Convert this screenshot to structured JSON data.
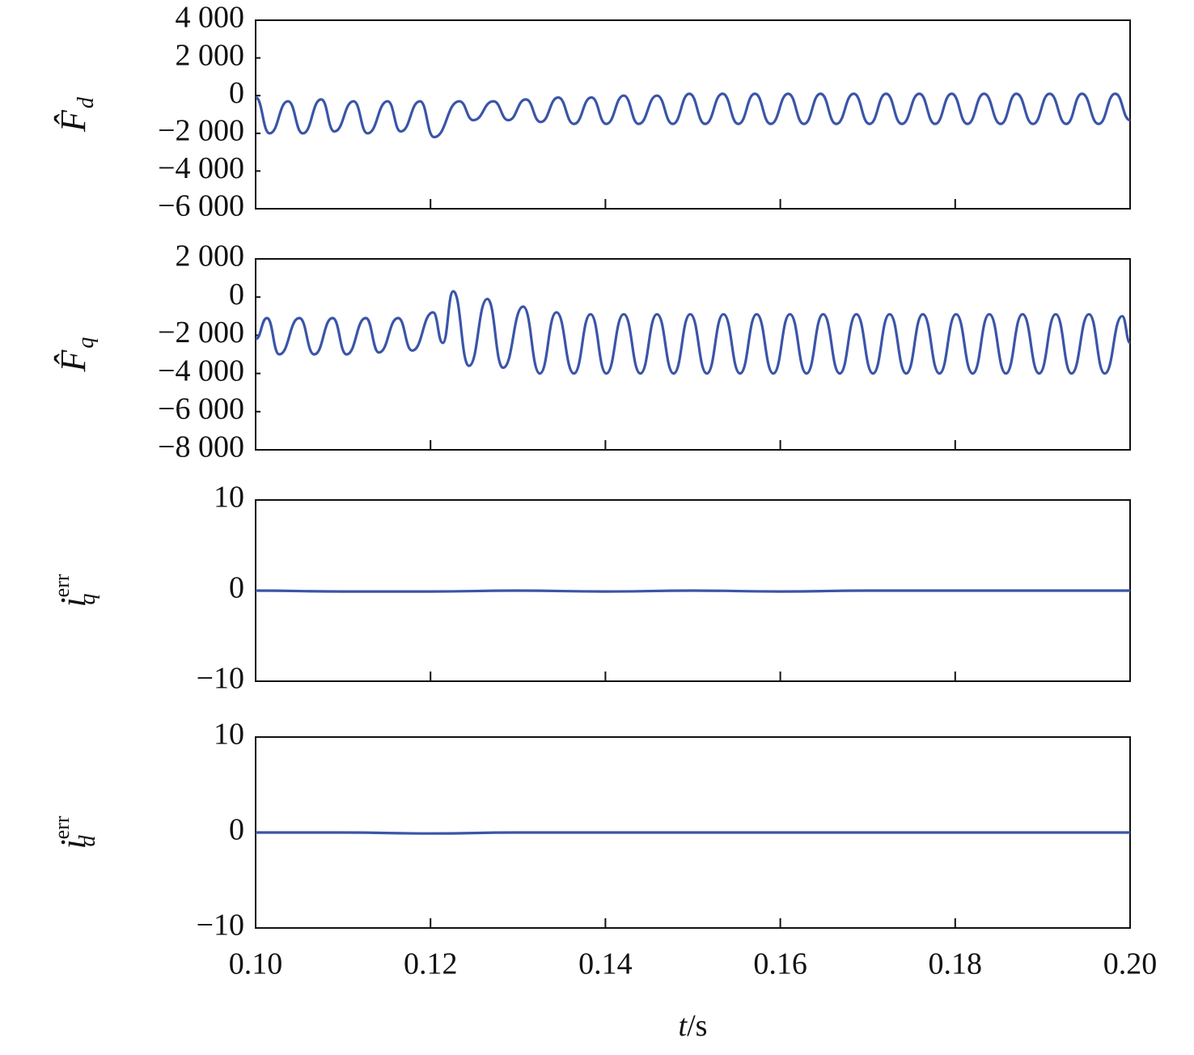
{
  "chart_data": [
    {
      "type": "line",
      "ylabel": "F̂",
      "ylabel_sub": "d",
      "x": [
        0.1,
        0.1016,
        0.1037,
        0.1054,
        0.1075,
        0.109,
        0.1112,
        0.1128,
        0.1151,
        0.1166,
        0.1188,
        0.1204,
        0.1233,
        0.1249,
        0.1272,
        0.1289,
        0.1309,
        0.1326,
        0.1346,
        0.1364,
        0.1384,
        0.1401,
        0.1421,
        0.1438,
        0.1459,
        0.1477,
        0.1496,
        0.1514,
        0.1534,
        0.1552,
        0.1571,
        0.1589,
        0.1609,
        0.1627,
        0.1646,
        0.1664,
        0.1684,
        0.1702,
        0.1721,
        0.1739,
        0.1759,
        0.1777,
        0.1796,
        0.1814,
        0.1833,
        0.1852,
        0.187,
        0.1889,
        0.1908,
        0.1927,
        0.1945,
        0.1964,
        0.1983,
        0.2
      ],
      "series": [
        {
          "color": "#3a55a8",
          "values": [
            -100,
            -2000,
            -300,
            -2000,
            -200,
            -1900,
            -300,
            -2000,
            -300,
            -1900,
            -300,
            -2200,
            -300,
            -1300,
            -300,
            -1300,
            -200,
            -1400,
            -100,
            -1500,
            -100,
            -1500,
            0,
            -1500,
            0,
            -1500,
            100,
            -1500,
            100,
            -1500,
            100,
            -1500,
            100,
            -1500,
            100,
            -1500,
            100,
            -1500,
            100,
            -1500,
            100,
            -1500,
            100,
            -1500,
            100,
            -1500,
            100,
            -1500,
            100,
            -1500,
            100,
            -1500,
            100,
            -1300
          ]
        }
      ],
      "xlim": [
        0.1,
        0.2
      ],
      "xticks": [
        0.1,
        0.12,
        0.14,
        0.16,
        0.18,
        0.2
      ],
      "ylim": [
        -6000,
        4000
      ],
      "yticks": [
        {
          "value": 4000,
          "label": "4 000"
        },
        {
          "value": 2000,
          "label": "2 000"
        },
        0,
        {
          "value": -2000,
          "label": "−2 000"
        },
        {
          "value": -4000,
          "label": "−4 000"
        },
        {
          "value": -6000,
          "label": "−6 000"
        }
      ]
    },
    {
      "type": "line",
      "ylabel": "F̂",
      "ylabel_sub": "q",
      "x": [
        0.1,
        0.1013,
        0.1027,
        0.105,
        0.1067,
        0.1088,
        0.1104,
        0.1126,
        0.1141,
        0.1163,
        0.1179,
        0.1203,
        0.1214,
        0.1226,
        0.1244,
        0.1265,
        0.1283,
        0.1306,
        0.1325,
        0.1344,
        0.1364,
        0.1383,
        0.1401,
        0.1421,
        0.144,
        0.1459,
        0.1478,
        0.1497,
        0.1516,
        0.1535,
        0.1554,
        0.1573,
        0.1592,
        0.1611,
        0.163,
        0.1649,
        0.1668,
        0.1687,
        0.1706,
        0.1725,
        0.1744,
        0.1763,
        0.1782,
        0.1801,
        0.182,
        0.1839,
        0.1858,
        0.1877,
        0.1896,
        0.1915,
        0.1933,
        0.1953,
        0.1971,
        0.1991,
        0.2
      ],
      "series": [
        {
          "color": "#3a55a8",
          "values": [
            -2200,
            -1100,
            -3000,
            -1100,
            -3000,
            -1100,
            -3000,
            -1100,
            -2900,
            -1100,
            -2800,
            -800,
            -2400,
            300,
            -3600,
            -100,
            -3700,
            -500,
            -4000,
            -800,
            -4000,
            -900,
            -4000,
            -900,
            -4000,
            -900,
            -4000,
            -900,
            -4000,
            -900,
            -4000,
            -900,
            -4000,
            -900,
            -4000,
            -900,
            -4000,
            -900,
            -4000,
            -900,
            -4000,
            -900,
            -4000,
            -900,
            -4000,
            -900,
            -4000,
            -900,
            -4000,
            -900,
            -4000,
            -900,
            -4000,
            -1000,
            -2400
          ]
        }
      ],
      "xlim": [
        0.1,
        0.2
      ],
      "xticks": [
        0.1,
        0.12,
        0.14,
        0.16,
        0.18,
        0.2
      ],
      "ylim": [
        -8000,
        2000
      ],
      "yticks": [
        {
          "value": 2000,
          "label": "2 000"
        },
        0,
        {
          "value": -2000,
          "label": "−2 000"
        },
        {
          "value": -4000,
          "label": "−4 000"
        },
        {
          "value": -6000,
          "label": "−6 000"
        },
        {
          "value": -8000,
          "label": "−8 000"
        }
      ]
    },
    {
      "type": "line",
      "ylabel": "i",
      "ylabel_sup": "err",
      "ylabel_sub": "q",
      "x": [
        0.1,
        0.11,
        0.12,
        0.13,
        0.14,
        0.15,
        0.16,
        0.17,
        0.18,
        0.19,
        0.2
      ],
      "series": [
        {
          "color": "#3a55a8",
          "values": [
            0,
            -0.1,
            -0.1,
            0,
            -0.1,
            0,
            -0.1,
            0,
            0,
            0,
            0
          ]
        }
      ],
      "xlim": [
        0.1,
        0.2
      ],
      "xticks": [
        0.1,
        0.12,
        0.14,
        0.16,
        0.18,
        0.2
      ],
      "ylim": [
        -10,
        10
      ],
      "yticks": [
        10,
        0,
        {
          "value": -10,
          "label": "−10"
        }
      ]
    },
    {
      "type": "line",
      "ylabel": "i",
      "ylabel_sup": "err",
      "ylabel_sub": "d",
      "x": [
        0.1,
        0.11,
        0.12,
        0.13,
        0.14,
        0.15,
        0.16,
        0.17,
        0.18,
        0.19,
        0.2
      ],
      "series": [
        {
          "color": "#3a55a8",
          "values": [
            0,
            0,
            -0.1,
            0,
            0,
            0,
            0,
            0,
            0,
            0,
            0
          ]
        }
      ],
      "xlim": [
        0.1,
        0.2
      ],
      "xticks": [
        {
          "value": 0.1,
          "label": "0.10"
        },
        0.12,
        0.14,
        0.16,
        0.18,
        {
          "value": 0.2,
          "label": "0.20"
        }
      ],
      "xlabel_var": "t",
      "xlabel_unit": "/s",
      "ylim": [
        -10,
        10
      ],
      "yticks": [
        10,
        0,
        {
          "value": -10,
          "label": "−10"
        }
      ]
    }
  ]
}
